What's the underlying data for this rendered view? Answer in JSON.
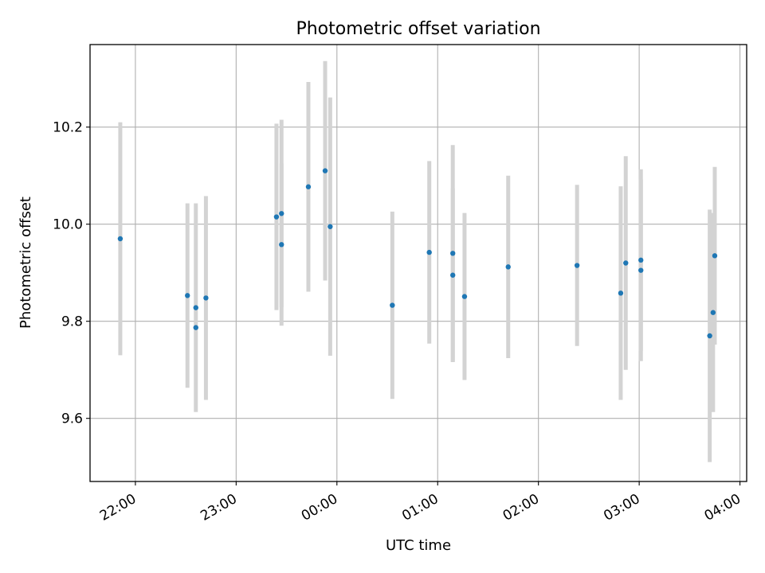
{
  "chart_data": {
    "type": "scatter",
    "title": "Photometric offset variation",
    "xlabel": "UTC time",
    "ylabel": "Photometric offset",
    "x_tick_labels": [
      "22:00",
      "23:00",
      "00:00",
      "01:00",
      "02:00",
      "03:00",
      "04:00"
    ],
    "y_tick_labels": [
      "9.6",
      "9.8",
      "10.0",
      "10.2"
    ],
    "y_ticks": [
      9.6,
      9.8,
      10.0,
      10.2
    ],
    "ylim": [
      9.47,
      10.37
    ],
    "xlim": [
      "21:33",
      "04:04"
    ],
    "grid": true,
    "point_color": "#1f77b4",
    "errorbar_color": "#d3d3d3",
    "series": [
      {
        "points": [
          {
            "t": "21:51",
            "y": 9.97,
            "yerr": 0.24
          },
          {
            "t": "22:31",
            "y": 9.853,
            "yerr": 0.19
          },
          {
            "t": "22:36",
            "y": 9.787,
            "yerr": 0.0
          },
          {
            "t": "22:36",
            "y": 9.828,
            "yerr": 0.215
          },
          {
            "t": "22:42",
            "y": 9.848,
            "yerr": 0.21
          },
          {
            "t": "23:24",
            "y": 10.015,
            "yerr": 0.192
          },
          {
            "t": "23:27",
            "y": 10.022,
            "yerr": 0.193
          },
          {
            "t": "23:27",
            "y": 9.958,
            "yerr": 0.167
          },
          {
            "t": "23:43",
            "y": 10.077,
            "yerr": 0.216
          },
          {
            "t": "23:53",
            "y": 10.11,
            "yerr": 0.226
          },
          {
            "t": "23:56",
            "y": 9.995,
            "yerr": 0.266
          },
          {
            "t": "00:33",
            "y": 9.833,
            "yerr": 0.193
          },
          {
            "t": "00:55",
            "y": 9.942,
            "yerr": 0.188
          },
          {
            "t": "01:09",
            "y": 9.94,
            "yerr": 0.223
          },
          {
            "t": "01:09",
            "y": 9.895,
            "yerr": 0.179
          },
          {
            "t": "01:16",
            "y": 9.851,
            "yerr": 0.172
          },
          {
            "t": "01:42",
            "y": 9.912,
            "yerr": 0.188
          },
          {
            "t": "02:23",
            "y": 9.915,
            "yerr": 0.166
          },
          {
            "t": "02:49",
            "y": 9.858,
            "yerr": 0.22
          },
          {
            "t": "02:52",
            "y": 9.92,
            "yerr": 0.22
          },
          {
            "t": "03:01",
            "y": 9.926,
            "yerr": 0.187
          },
          {
            "t": "03:01",
            "y": 9.905,
            "yerr": 0.187
          },
          {
            "t": "03:42",
            "y": 9.77,
            "yerr": 0.26
          },
          {
            "t": "03:44",
            "y": 9.818,
            "yerr": 0.205
          },
          {
            "t": "03:45",
            "y": 9.935,
            "yerr": 0.183
          }
        ]
      }
    ]
  }
}
